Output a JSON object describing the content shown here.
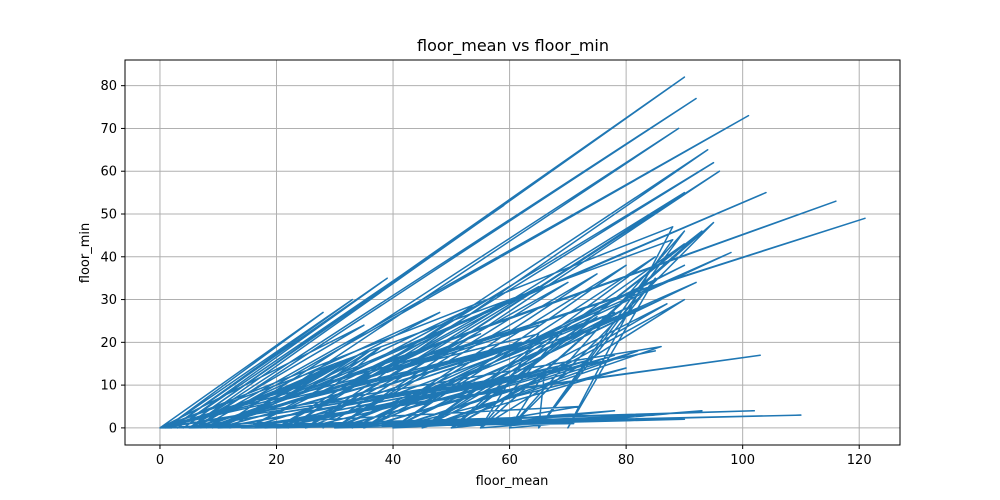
{
  "chart_data": {
    "type": "line",
    "title": "floor_mean vs floor_min",
    "xlabel": "floor_mean",
    "ylabel": "floor_min",
    "xlim": [
      -6,
      127
    ],
    "ylim": [
      -4,
      86
    ],
    "xticks": [
      0,
      20,
      40,
      60,
      80,
      100,
      120
    ],
    "yticks": [
      0,
      10,
      20,
      30,
      40,
      50,
      60,
      70,
      80
    ],
    "grid": true,
    "series_color": "#1f77b4",
    "series": [
      {
        "x": [
          0,
          28,
          1,
          33,
          2,
          39,
          3,
          59,
          4,
          90,
          5,
          92,
          6,
          101,
          7,
          116,
          8,
          121,
          9,
          104,
          10,
          89,
          12,
          103,
          14,
          70,
          16,
          62,
          18,
          85,
          20,
          95,
          22,
          94,
          25,
          90,
          28,
          96,
          30,
          98,
          33,
          90,
          35,
          92,
          40,
          80,
          45,
          87,
          50,
          90,
          55,
          93,
          60,
          66,
          65,
          85,
          70,
          88,
          0,
          35,
          5,
          48,
          10,
          55,
          15,
          60,
          20,
          65,
          25,
          70,
          30,
          75,
          35,
          80,
          40,
          85,
          45,
          90,
          50,
          93,
          55,
          95,
          60,
          90,
          65,
          88,
          0,
          58,
          5,
          62,
          10,
          68,
          15,
          72,
          20,
          76,
          25,
          78,
          30,
          82,
          35,
          86,
          40,
          80,
          45,
          75,
          50,
          70,
          55,
          65,
          0,
          50,
          5,
          54,
          10,
          60,
          15,
          64,
          20,
          67,
          25,
          70,
          30,
          74,
          35,
          78,
          40,
          82,
          45,
          86,
          0,
          102,
          10,
          110,
          20,
          90,
          30,
          85,
          40,
          78,
          50,
          72,
          0,
          71,
          5,
          62,
          0,
          25,
          3,
          26,
          6,
          27,
          9,
          28,
          12,
          29,
          15,
          30,
          18,
          32,
          21,
          34,
          24,
          36,
          27,
          38,
          30,
          45,
          33,
          50,
          36,
          55,
          39,
          60,
          42,
          65,
          0
        ],
        "y": [
          0,
          27,
          0,
          30,
          0,
          35,
          0,
          52,
          0,
          82,
          0,
          77,
          0,
          73,
          0,
          53,
          0,
          49,
          0,
          55,
          0,
          70,
          0,
          17,
          0,
          1,
          0,
          2,
          0,
          18,
          0,
          62,
          0,
          65,
          0,
          55,
          0,
          60,
          0,
          41,
          0,
          38,
          0,
          34,
          0,
          14,
          0,
          29,
          0,
          30,
          0,
          4,
          0,
          13,
          0,
          35,
          0,
          47,
          0,
          24,
          0,
          27,
          0,
          29,
          0,
          30,
          0,
          33,
          0,
          34,
          0,
          36,
          0,
          38,
          0,
          40,
          0,
          43,
          0,
          46,
          0,
          48,
          0,
          46,
          0,
          44,
          0,
          18,
          0,
          20,
          0,
          22,
          0,
          24,
          0,
          26,
          0,
          27,
          0,
          28,
          0,
          30,
          0,
          28,
          0,
          26,
          0,
          24,
          0,
          22,
          0,
          10,
          0,
          11,
          0,
          12,
          0,
          13,
          0,
          14,
          0,
          15,
          0,
          16,
          0,
          17,
          0,
          18,
          0,
          19,
          0,
          4,
          0,
          3,
          0,
          2,
          0,
          3,
          0,
          4,
          0,
          5,
          0,
          1,
          0,
          2,
          0,
          10,
          1,
          11,
          2,
          12,
          3,
          13,
          4,
          14,
          5,
          15,
          6,
          16,
          7,
          17,
          8,
          18,
          9,
          19,
          10,
          20,
          11,
          21,
          12,
          22,
          13,
          23,
          14,
          24,
          0
        ]
      }
    ]
  }
}
